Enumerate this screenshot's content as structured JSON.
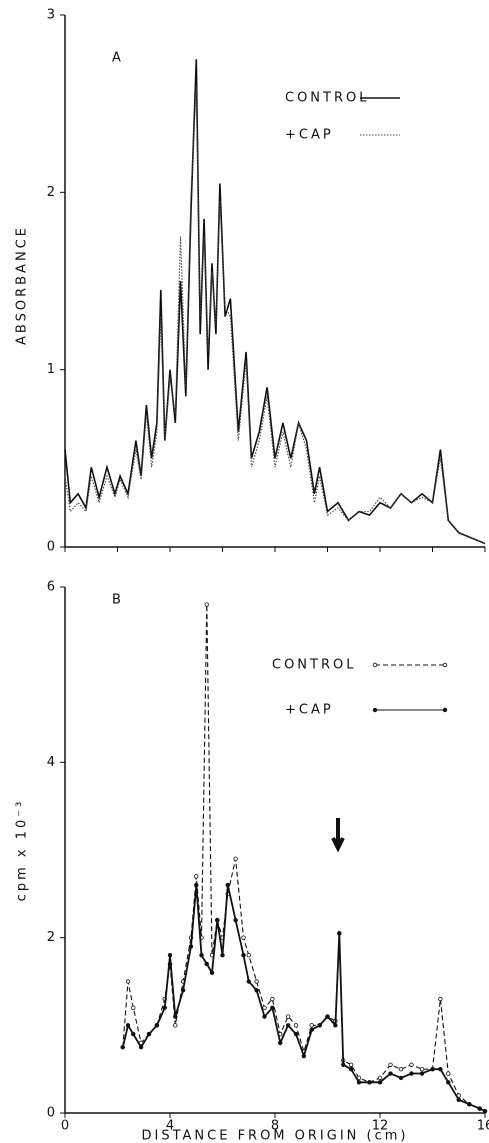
{
  "chart_data": [
    {
      "type": "line",
      "panel_label": "A",
      "ylabel": "ABSORBANCE",
      "x": [
        0,
        0.2,
        0.5,
        0.8,
        1.0,
        1.3,
        1.6,
        1.9,
        2.1,
        2.4,
        2.7,
        2.9,
        3.1,
        3.3,
        3.5,
        3.65,
        3.8,
        4.0,
        4.2,
        4.4,
        4.6,
        4.8,
        5.0,
        5.15,
        5.3,
        5.45,
        5.6,
        5.75,
        5.9,
        6.1,
        6.3,
        6.6,
        6.9,
        7.1,
        7.4,
        7.7,
        8.0,
        8.3,
        8.6,
        8.9,
        9.2,
        9.5,
        9.7,
        10.0,
        10.4,
        10.8,
        11.2,
        11.6,
        12.0,
        12.4,
        12.8,
        13.2,
        13.6,
        14.0,
        14.3,
        14.6,
        15.0,
        15.5,
        16.0
      ],
      "series": [
        {
          "name": "CONTROL",
          "color": "#111111",
          "style": "solid",
          "marker": "none",
          "values": [
            0.55,
            0.25,
            0.3,
            0.22,
            0.45,
            0.28,
            0.45,
            0.3,
            0.4,
            0.3,
            0.6,
            0.4,
            0.8,
            0.5,
            0.7,
            1.45,
            0.6,
            1.0,
            0.7,
            1.5,
            0.85,
            1.9,
            2.75,
            1.2,
            1.85,
            1.0,
            1.6,
            1.2,
            2.05,
            1.3,
            1.4,
            0.65,
            1.1,
            0.5,
            0.65,
            0.9,
            0.5,
            0.7,
            0.5,
            0.7,
            0.6,
            0.3,
            0.45,
            0.2,
            0.25,
            0.15,
            0.2,
            0.18,
            0.25,
            0.22,
            0.3,
            0.25,
            0.3,
            0.25,
            0.55,
            0.15,
            0.08,
            0.05,
            0.02
          ]
        },
        {
          "name": "+CAP",
          "color": "#444444",
          "style": "dotted",
          "marker": "none",
          "values": [
            0.4,
            0.2,
            0.25,
            0.2,
            0.4,
            0.25,
            0.4,
            0.28,
            0.38,
            0.28,
            0.55,
            0.38,
            0.75,
            0.45,
            0.65,
            1.3,
            0.6,
            0.95,
            0.75,
            1.75,
            0.9,
            2.0,
            2.6,
            1.3,
            1.75,
            1.1,
            1.55,
            1.25,
            1.95,
            1.35,
            1.3,
            0.6,
            1.05,
            0.45,
            0.6,
            0.85,
            0.45,
            0.65,
            0.45,
            0.7,
            0.55,
            0.25,
            0.4,
            0.18,
            0.22,
            0.15,
            0.2,
            0.2,
            0.28,
            0.22,
            0.3,
            0.25,
            0.28,
            0.25,
            0.5,
            0.15,
            0.08,
            0.05,
            0.02
          ]
        }
      ],
      "xlim": [
        0,
        16
      ],
      "xticks": [
        0,
        2,
        4,
        6,
        8,
        10,
        12,
        14,
        16
      ],
      "ylim": [
        0,
        3
      ],
      "yticks": [
        0,
        1,
        2,
        3
      ]
    },
    {
      "type": "line",
      "panel_label": "B",
      "ylabel": "cpm  x  10⁻³",
      "xlabel": "DISTANCE  FROM  ORIGIN (cm)",
      "x": [
        2.2,
        2.4,
        2.6,
        2.9,
        3.2,
        3.5,
        3.8,
        4.0,
        4.2,
        4.5,
        4.8,
        5.0,
        5.2,
        5.4,
        5.6,
        5.8,
        6.0,
        6.2,
        6.5,
        6.8,
        7.0,
        7.3,
        7.6,
        7.9,
        8.2,
        8.5,
        8.8,
        9.1,
        9.4,
        9.7,
        10.0,
        10.3,
        10.45,
        10.6,
        10.9,
        11.2,
        11.6,
        12.0,
        12.4,
        12.8,
        13.2,
        13.6,
        14.0,
        14.3,
        14.6,
        15.0,
        15.4,
        15.8,
        16.0
      ],
      "series": [
        {
          "name": "CONTROL",
          "color": "#111111",
          "style": "dashed",
          "marker": "open",
          "values": [
            0.75,
            1.5,
            1.2,
            0.8,
            0.9,
            1.0,
            1.3,
            1.7,
            1.0,
            1.5,
            2.0,
            2.7,
            2.0,
            5.8,
            1.8,
            2.2,
            2.0,
            2.5,
            2.9,
            2.0,
            1.8,
            1.5,
            1.2,
            1.3,
            0.9,
            1.1,
            1.0,
            0.7,
            1.0,
            1.0,
            1.1,
            1.05,
            2.05,
            0.6,
            0.55,
            0.4,
            0.35,
            0.4,
            0.55,
            0.5,
            0.55,
            0.5,
            0.5,
            1.3,
            0.45,
            0.2,
            0.1,
            0.05,
            0.02
          ]
        },
        {
          "name": "+CAP",
          "color": "#111111",
          "style": "solid",
          "marker": "filled",
          "values": [
            0.75,
            1.0,
            0.9,
            0.75,
            0.9,
            1.0,
            1.2,
            1.8,
            1.1,
            1.4,
            1.9,
            2.6,
            1.8,
            1.7,
            1.6,
            2.2,
            1.8,
            2.6,
            2.2,
            1.8,
            1.5,
            1.4,
            1.1,
            1.2,
            0.8,
            1.0,
            0.9,
            0.65,
            0.95,
            1.0,
            1.1,
            1.0,
            2.05,
            0.55,
            0.5,
            0.35,
            0.35,
            0.35,
            0.45,
            0.4,
            0.45,
            0.45,
            0.5,
            0.5,
            0.35,
            0.15,
            0.1,
            0.05,
            0.02
          ]
        }
      ],
      "xlim": [
        0,
        16
      ],
      "xticks": [
        0,
        4,
        8,
        12,
        16
      ],
      "ylim": [
        0,
        6
      ],
      "yticks": [
        0,
        2,
        4,
        6
      ]
    }
  ]
}
